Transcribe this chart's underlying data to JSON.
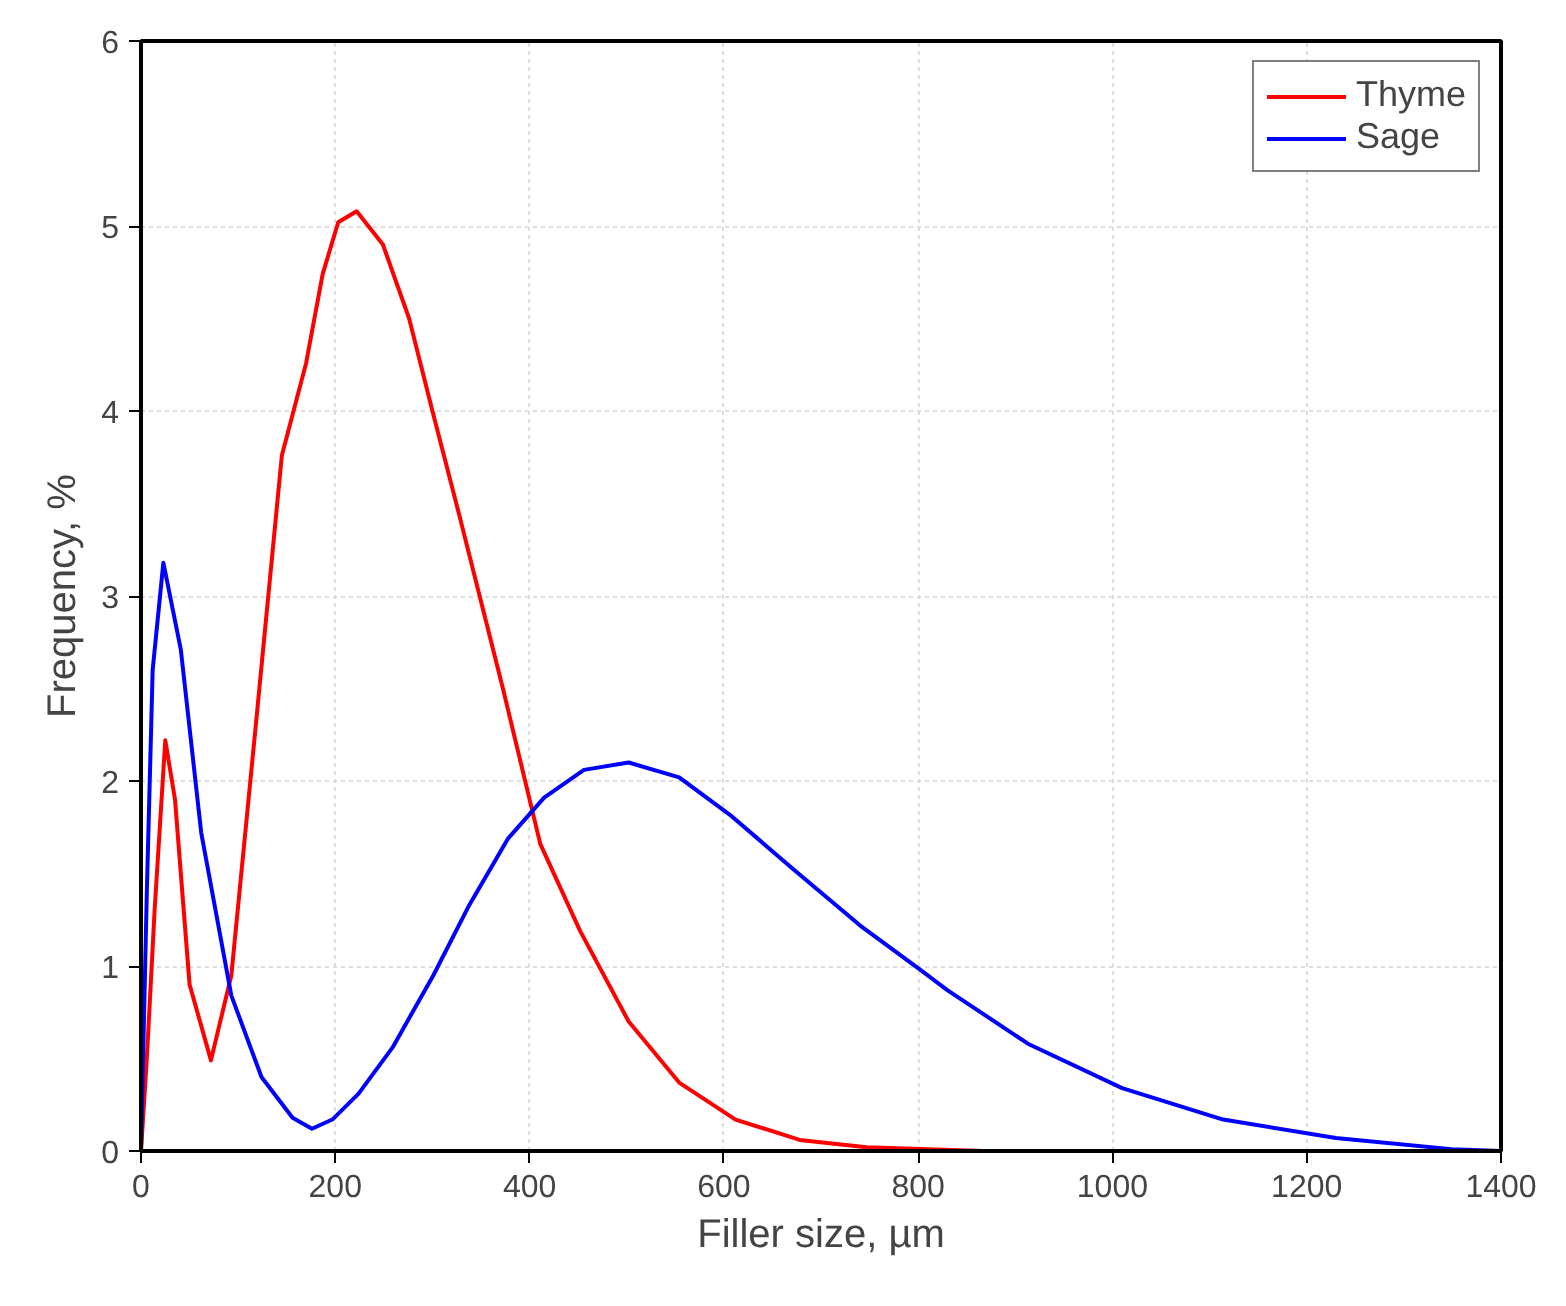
{
  "chart_data": {
    "type": "line",
    "xlabel": "Filler size, µm",
    "ylabel": "Frequency, %",
    "xlim": [
      0,
      1400
    ],
    "ylim": [
      0,
      6
    ],
    "xticks": [
      0,
      200,
      400,
      600,
      800,
      1000,
      1200,
      1400
    ],
    "yticks": [
      0,
      1,
      2,
      3,
      4,
      5,
      6
    ],
    "grid": true,
    "legend": "top right",
    "marker": "none",
    "line_style": "solid",
    "series": [
      {
        "name": "Thyme",
        "color": "#ff0000",
        "x": [
          0,
          6,
          14,
          25,
          35,
          50,
          72,
          93,
          120,
          145,
          170,
          187,
          203,
          222,
          249,
          276,
          300,
          328,
          373,
          411,
          452,
          502,
          554,
          612,
          678,
          747,
          867
        ],
        "values": [
          0,
          0.5,
          1.3,
          2.22,
          1.9,
          0.9,
          0.49,
          0.95,
          2.4,
          3.76,
          4.26,
          4.74,
          5.02,
          5.08,
          4.9,
          4.5,
          4.0,
          3.43,
          2.49,
          1.66,
          1.19,
          0.7,
          0.37,
          0.17,
          0.06,
          0.02,
          0
        ]
      },
      {
        "name": "Sage",
        "color": "#0000ff",
        "x": [
          0,
          6,
          12,
          23,
          41,
          62,
          93,
          124,
          156,
          176,
          197,
          224,
          259,
          301,
          338,
          378,
          415,
          456,
          502,
          554,
          608,
          670,
          740,
          802,
          830,
          913,
          1010,
          1114,
          1230,
          1349,
          1400
        ],
        "values": [
          0,
          1.4,
          2.6,
          3.18,
          2.71,
          1.72,
          0.84,
          0.4,
          0.18,
          0.12,
          0.17,
          0.31,
          0.56,
          0.95,
          1.33,
          1.69,
          1.91,
          2.06,
          2.1,
          2.02,
          1.81,
          1.53,
          1.22,
          0.98,
          0.87,
          0.58,
          0.34,
          0.17,
          0.07,
          0.01,
          0
        ]
      }
    ]
  }
}
